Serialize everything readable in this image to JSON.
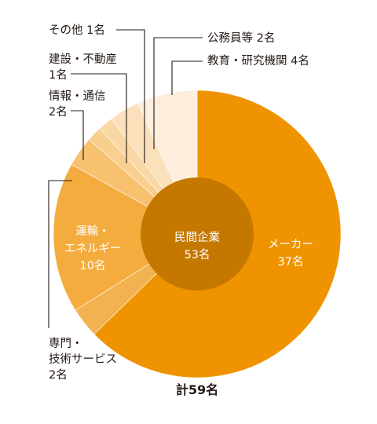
{
  "chart_data": {
    "type": "pie",
    "unit": "名",
    "total_label": "計59名",
    "center_label": [
      "民間企業",
      "53名"
    ],
    "center_value": 53,
    "slices": [
      {
        "key": "maker",
        "label_lines": [
          "メーカー",
          "37名"
        ],
        "value": 37,
        "color": "#ef9300"
      },
      {
        "key": "senmon",
        "label_lines": [
          "専門・",
          "技術サービス",
          "2名"
        ],
        "value": 2,
        "color": "#f2b24f"
      },
      {
        "key": "unyu",
        "label_lines": [
          "運輸・",
          "エネルギー",
          "10名"
        ],
        "value": 10,
        "color": "#f4ac3e"
      },
      {
        "key": "joho",
        "label_lines": [
          "情報・通信",
          "2名"
        ],
        "value": 2,
        "color": "#f7c170"
      },
      {
        "key": "kensetsu",
        "label_lines": [
          "建設・不動産",
          "1名"
        ],
        "value": 1,
        "color": "#f9cf8f"
      },
      {
        "key": "sonota",
        "label_lines": [
          "その他 1名"
        ],
        "value": 1,
        "color": "#fad8a5"
      },
      {
        "key": "komuin",
        "label_lines": [
          "公務員等 2名"
        ],
        "value": 2,
        "color": "#fbe1bb"
      },
      {
        "key": "kyoiku",
        "label_lines": [
          "教育・研究機関 4名"
        ],
        "value": 4,
        "color": "#fdeede"
      }
    ],
    "center_color": "#c57800"
  }
}
